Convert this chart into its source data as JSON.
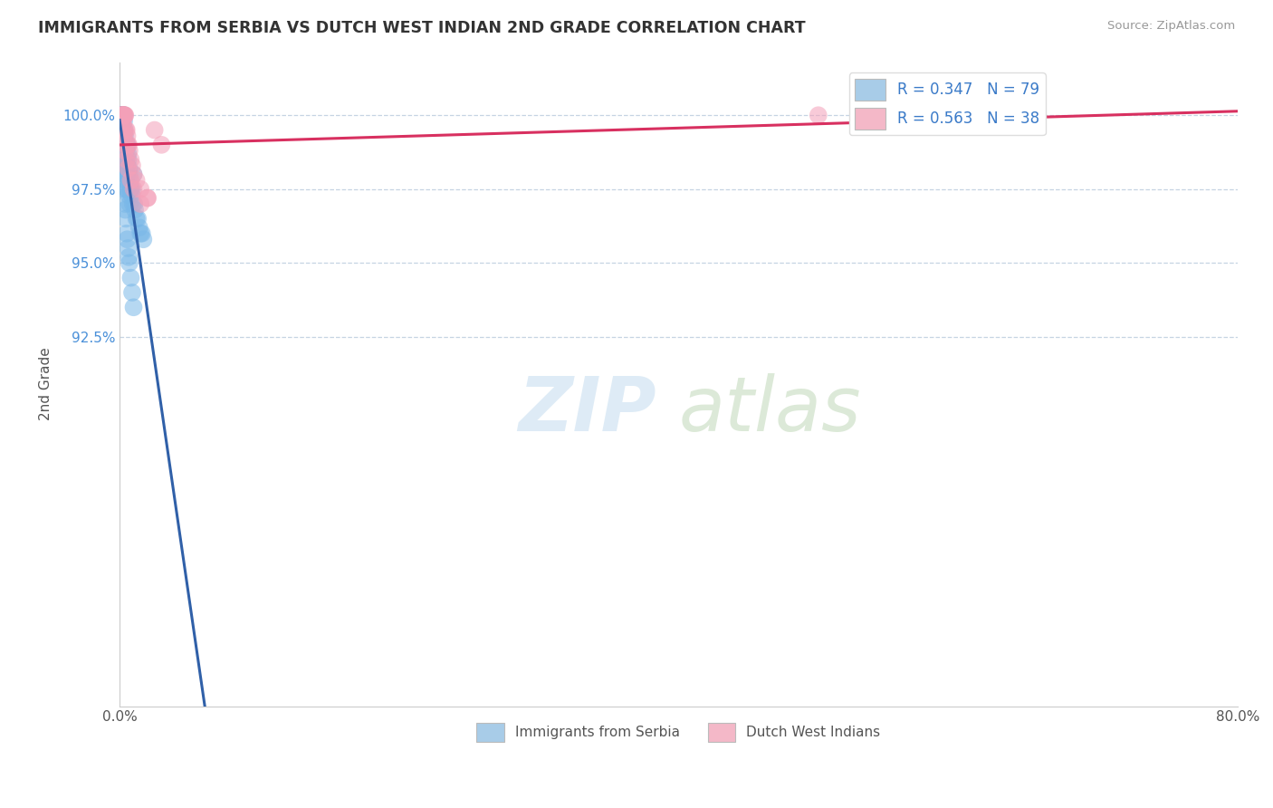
{
  "title": "IMMIGRANTS FROM SERBIA VS DUTCH WEST INDIAN 2ND GRADE CORRELATION CHART",
  "source": "Source: ZipAtlas.com",
  "ylabel": "2nd Grade",
  "xlim": [
    0.0,
    80.0
  ],
  "ylim": [
    80.0,
    101.8
  ],
  "yticks": [
    92.5,
    95.0,
    97.5,
    100.0
  ],
  "ytick_labels": [
    "92.5%",
    "95.0%",
    "97.5%",
    "100.0%"
  ],
  "xticks": [
    0.0,
    16.0,
    32.0,
    48.0,
    64.0,
    80.0
  ],
  "xtick_labels": [
    "0.0%",
    "",
    "",
    "",
    "",
    "80.0%"
  ],
  "legend_r_label1": "R = 0.347   N = 79",
  "legend_r_label2": "R = 0.563   N = 38",
  "serbia_color": "#7ab8e8",
  "dwi_color": "#f4a0b8",
  "serbia_line_color": "#3060a8",
  "dwi_line_color": "#d83060",
  "legend_serbia_color": "#a8cce8",
  "legend_dwi_color": "#f4b8c8",
  "serbia_x": [
    0.05,
    0.05,
    0.05,
    0.08,
    0.08,
    0.1,
    0.1,
    0.1,
    0.12,
    0.12,
    0.15,
    0.15,
    0.15,
    0.18,
    0.18,
    0.2,
    0.2,
    0.22,
    0.22,
    0.25,
    0.25,
    0.28,
    0.28,
    0.3,
    0.3,
    0.32,
    0.32,
    0.35,
    0.35,
    0.38,
    0.38,
    0.4,
    0.4,
    0.42,
    0.45,
    0.45,
    0.48,
    0.5,
    0.5,
    0.52,
    0.55,
    0.55,
    0.58,
    0.6,
    0.62,
    0.65,
    0.68,
    0.7,
    0.72,
    0.75,
    0.78,
    0.8,
    0.85,
    0.9,
    0.95,
    1.0,
    1.05,
    1.1,
    1.2,
    1.3,
    1.4,
    1.5,
    1.6,
    1.7,
    0.2,
    0.25,
    0.3,
    0.35,
    0.4,
    0.42,
    0.45,
    0.5,
    0.55,
    0.6,
    0.65,
    0.7,
    0.8,
    0.9,
    1.0
  ],
  "serbia_y": [
    100.0,
    100.0,
    100.0,
    100.0,
    100.0,
    100.0,
    100.0,
    100.0,
    100.0,
    100.0,
    100.0,
    100.0,
    99.8,
    100.0,
    99.8,
    100.0,
    99.5,
    100.0,
    99.5,
    100.0,
    99.3,
    100.0,
    99.2,
    100.0,
    99.0,
    99.8,
    98.8,
    99.5,
    98.5,
    99.3,
    98.3,
    99.0,
    98.0,
    98.0,
    98.8,
    97.8,
    98.5,
    99.0,
    97.5,
    98.3,
    99.0,
    97.5,
    98.0,
    98.7,
    98.5,
    97.3,
    98.2,
    98.0,
    97.0,
    97.8,
    97.5,
    97.5,
    97.3,
    97.5,
    97.0,
    98.0,
    97.0,
    96.8,
    96.5,
    96.5,
    96.2,
    96.0,
    96.0,
    95.8,
    99.0,
    98.5,
    98.0,
    97.5,
    97.0,
    96.8,
    96.5,
    96.0,
    95.8,
    95.5,
    95.2,
    95.0,
    94.5,
    94.0,
    93.5
  ],
  "dwi_x": [
    0.1,
    0.15,
    0.18,
    0.2,
    0.22,
    0.25,
    0.28,
    0.3,
    0.35,
    0.38,
    0.4,
    0.45,
    0.5,
    0.55,
    0.6,
    0.65,
    0.7,
    0.8,
    0.9,
    1.0,
    1.2,
    1.5,
    2.0,
    2.5,
    3.0,
    0.2,
    0.3,
    0.4,
    0.5,
    0.6,
    0.8,
    1.0,
    1.5,
    2.0,
    50.0,
    0.25,
    0.35,
    0.45
  ],
  "dwi_y": [
    100.0,
    100.0,
    100.0,
    100.0,
    100.0,
    100.0,
    100.0,
    100.0,
    100.0,
    100.0,
    100.0,
    99.5,
    99.5,
    99.3,
    99.0,
    99.0,
    98.8,
    98.5,
    98.3,
    98.0,
    97.8,
    97.5,
    97.2,
    99.5,
    99.0,
    99.5,
    99.3,
    98.8,
    98.5,
    98.2,
    97.8,
    97.5,
    97.0,
    97.2,
    100.0,
    99.8,
    99.5,
    99.0
  ]
}
